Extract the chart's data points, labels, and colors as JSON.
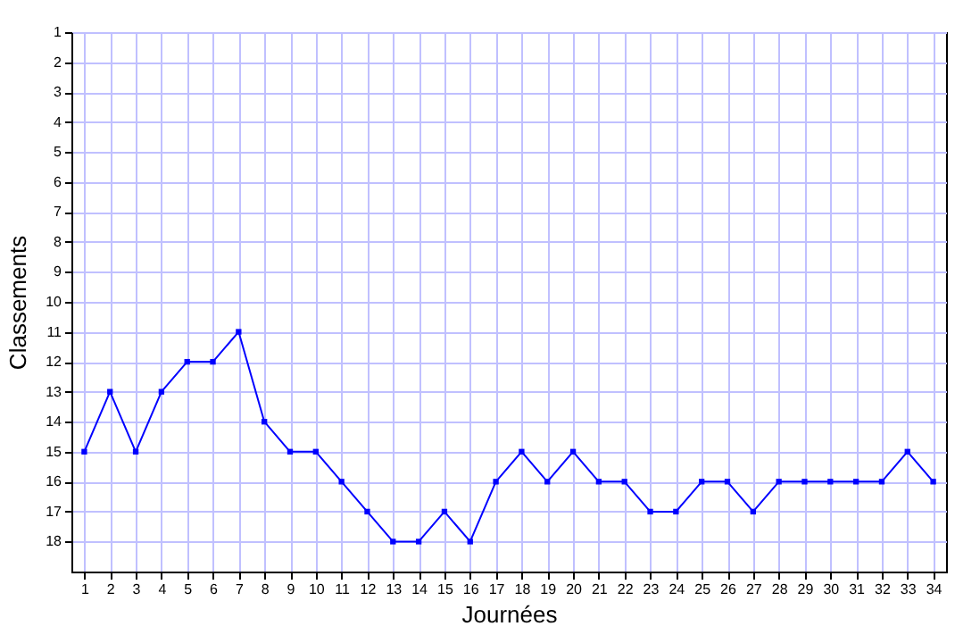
{
  "chart_data": {
    "type": "line",
    "xlabel": "Journées",
    "ylabel": "Classements",
    "x": [
      1,
      2,
      3,
      4,
      5,
      6,
      7,
      8,
      9,
      10,
      11,
      12,
      13,
      14,
      15,
      16,
      17,
      18,
      19,
      20,
      21,
      22,
      23,
      24,
      25,
      26,
      27,
      28,
      29,
      30,
      31,
      32,
      33,
      34
    ],
    "series": [
      {
        "color": "#0000ff",
        "values": [
          15,
          13,
          15,
          13,
          12,
          12,
          11,
          14,
          15,
          15,
          16,
          17,
          18,
          18,
          17,
          18,
          16,
          15,
          16,
          15,
          16,
          16,
          17,
          17,
          16,
          16,
          17,
          16,
          16,
          16,
          16,
          16,
          15,
          16
        ]
      }
    ],
    "xlim": [
      0.5,
      34.5
    ],
    "xticks": [
      1,
      2,
      3,
      4,
      5,
      6,
      7,
      8,
      9,
      10,
      11,
      12,
      13,
      14,
      15,
      16,
      17,
      18,
      19,
      20,
      21,
      22,
      23,
      24,
      25,
      26,
      27,
      28,
      29,
      30,
      31,
      32,
      33,
      34
    ],
    "ylim": [
      19,
      1
    ],
    "yticks": [
      1,
      2,
      3,
      4,
      5,
      6,
      7,
      8,
      9,
      10,
      11,
      12,
      13,
      14,
      15,
      16,
      17,
      18
    ],
    "grid": true,
    "marker": "square",
    "line_style": "solid"
  }
}
